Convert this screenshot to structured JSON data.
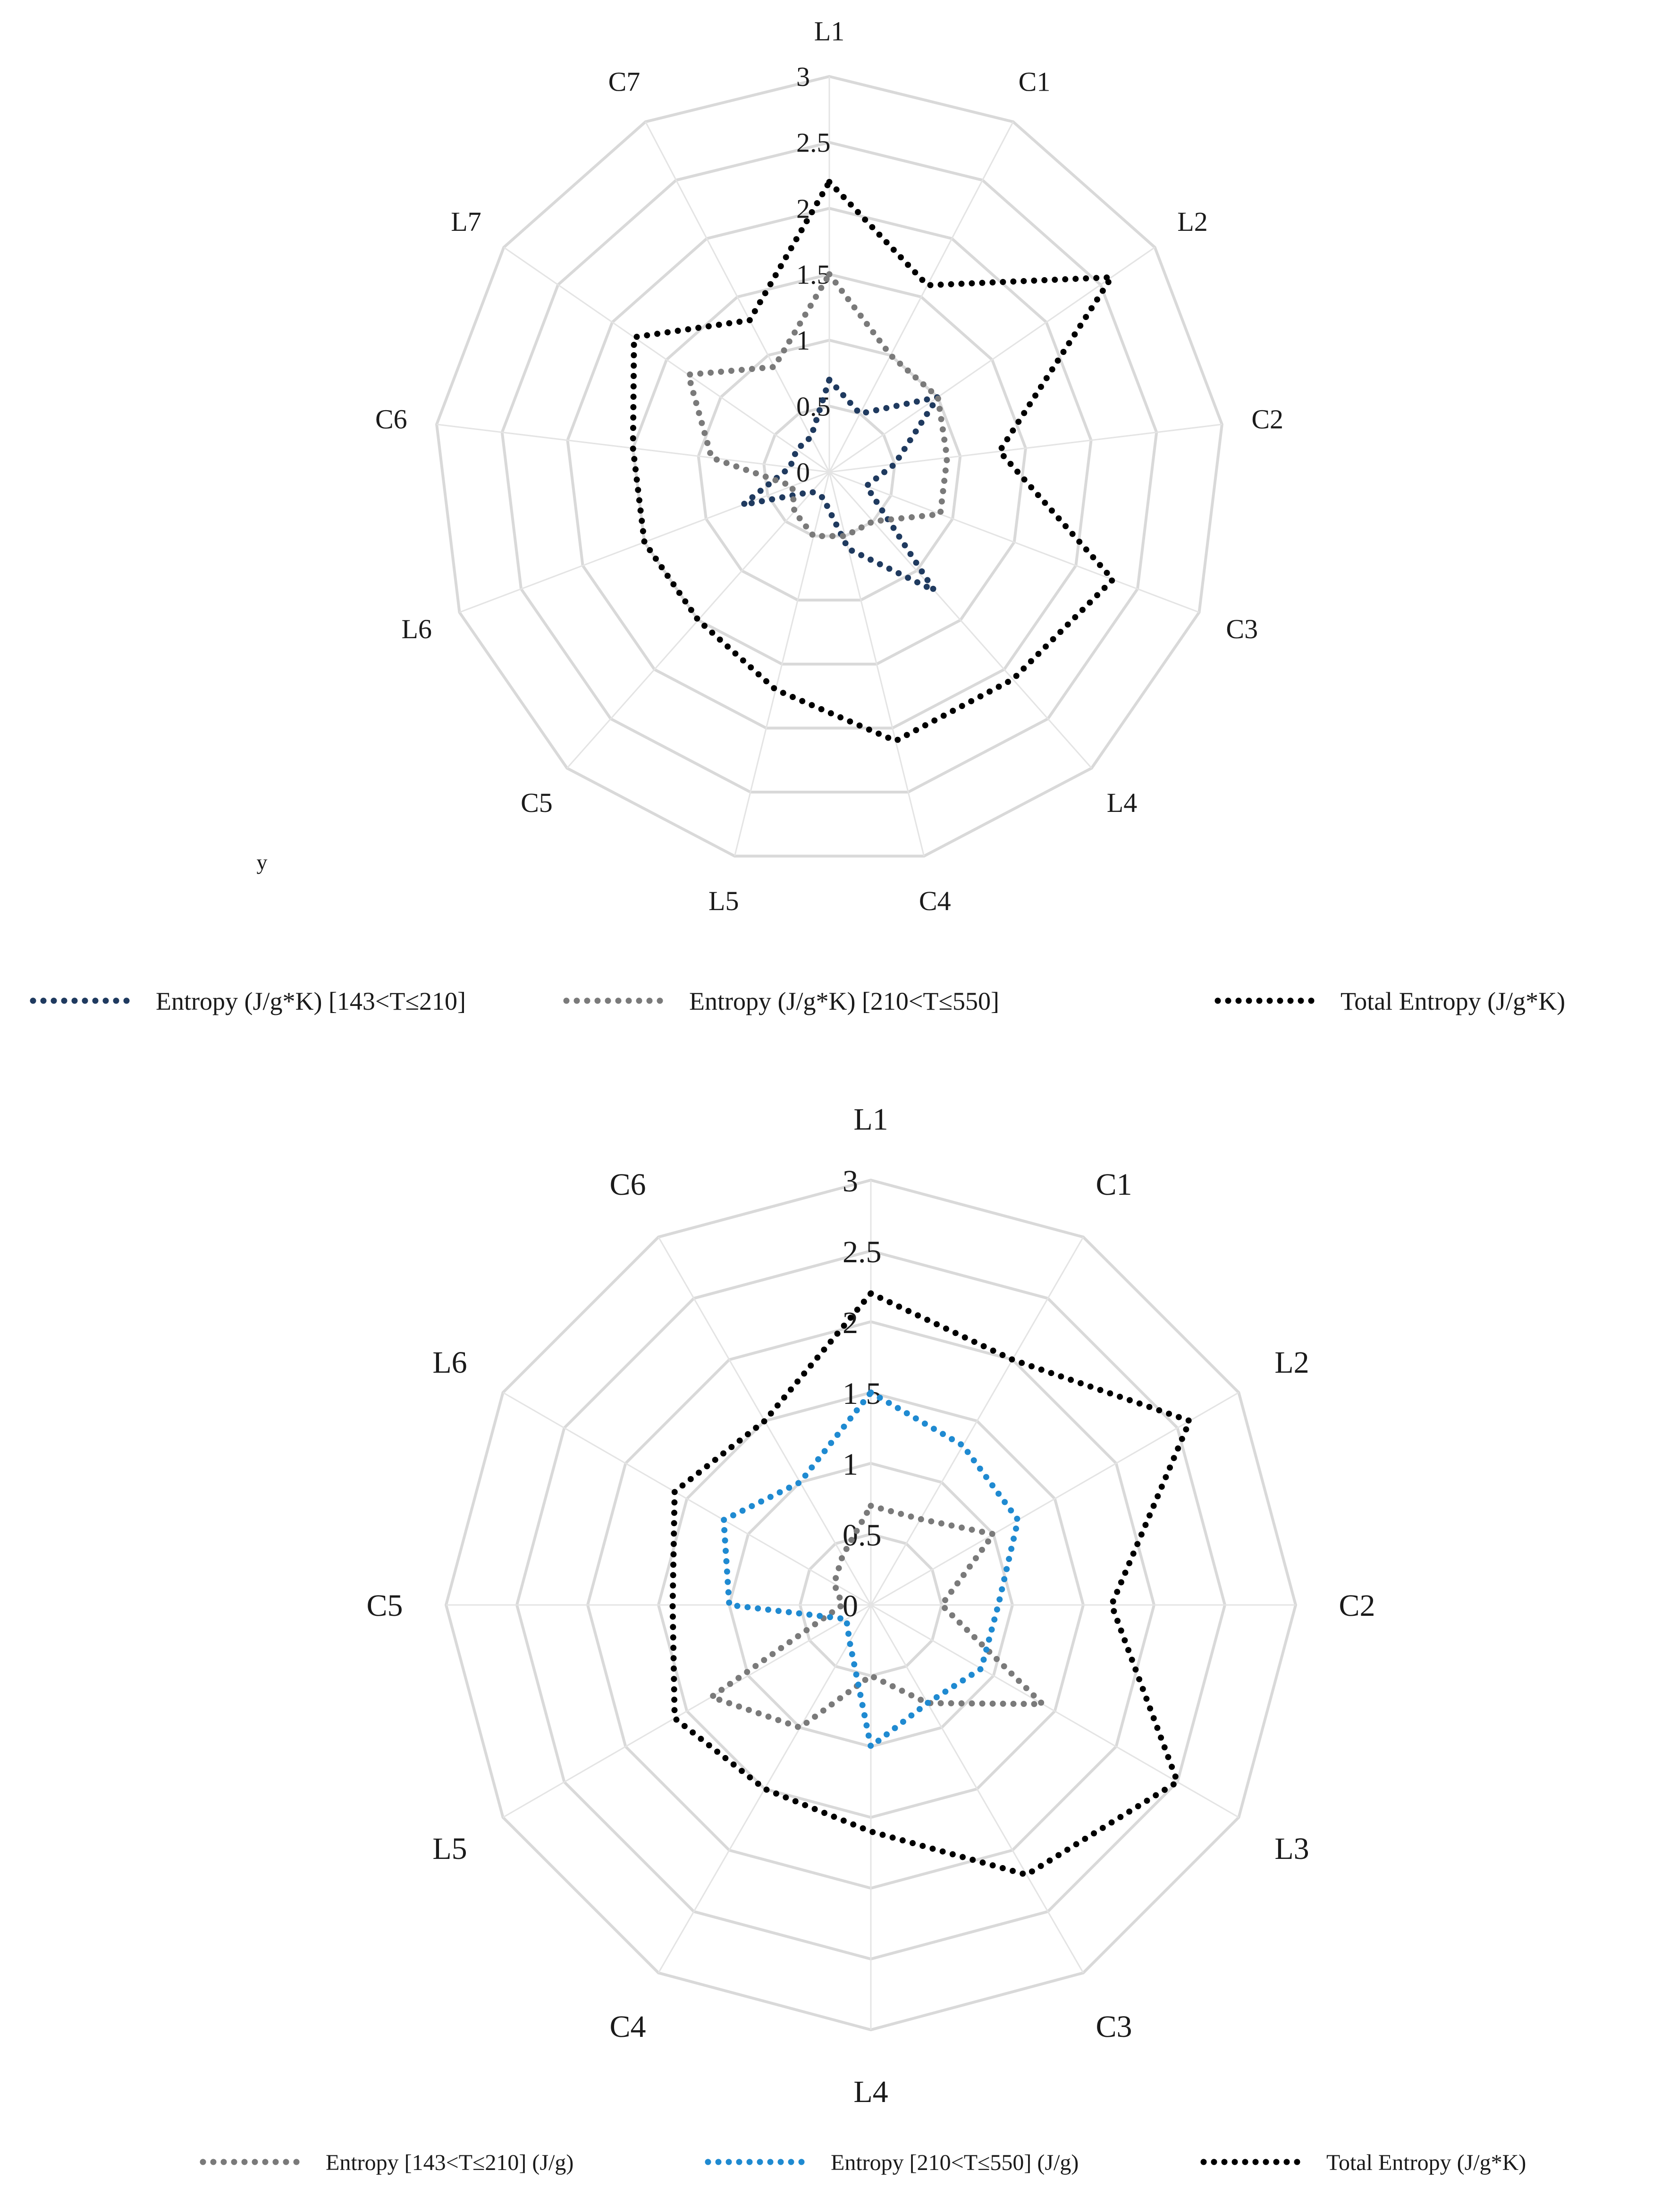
{
  "chart_data": [
    {
      "type": "radar",
      "categories": [
        "L1",
        "C1",
        "L2",
        "C2",
        "C3",
        "L4",
        "C4",
        "L5",
        "C5",
        "L6",
        "C6",
        "L7",
        "C7"
      ],
      "ticks": [
        "0",
        "0.5",
        "1",
        "1.5",
        "2",
        "2.5",
        "3"
      ],
      "rlim": [
        0,
        3
      ],
      "grid": true,
      "legend_position": "bottom",
      "stray_label": "y",
      "series": [
        {
          "name": "Entropy  (J/g*K) [143<T≤210]",
          "color": "#1f3a5f",
          "values": [
            0.7,
            0.5,
            1.0,
            0.5,
            0.3,
            1.2,
            0.6,
            0.2,
            0.2,
            0.7,
            0.3,
            0.3,
            0.3
          ]
        },
        {
          "name": "Entropy  (J/g*K) [210<T≤550]",
          "color": "#7a7a7a",
          "values": [
            1.5,
            1.0,
            1.0,
            0.9,
            0.9,
            0.5,
            0.5,
            0.5,
            0.4,
            0.3,
            0.9,
            1.3,
            0.9
          ]
        },
        {
          "name": "Total Entropy  (J/g*K)",
          "color": "#000000",
          "values": [
            2.2,
            1.6,
            2.6,
            1.3,
            2.3,
            2.1,
            2.1,
            1.7,
            1.5,
            1.5,
            1.5,
            1.8,
            1.3
          ]
        }
      ]
    },
    {
      "type": "radar",
      "categories": [
        "L1",
        "C1",
        "L2",
        "C2",
        "L3",
        "C3",
        "L4",
        "C4",
        "L5",
        "C5",
        "L6",
        "C6"
      ],
      "ticks": [
        "0",
        "0.5",
        "1",
        "1.5",
        "2",
        "2.5",
        "3"
      ],
      "rlim": [
        0,
        3
      ],
      "grid": true,
      "legend_position": "bottom",
      "series": [
        {
          "name": "Entropy [143<T≤210] (J/g)",
          "color": "#7a7a7a",
          "values": [
            0.7,
            0.7,
            1.0,
            0.5,
            1.4,
            0.8,
            0.5,
            1.0,
            1.3,
            0.2,
            0.3,
            0.4
          ]
        },
        {
          "name": "Entropy [210<T≤550] (J/g)",
          "color": "#1f8ad1",
          "values": [
            1.5,
            1.3,
            1.2,
            0.9,
            0.9,
            0.8,
            1.0,
            0.3,
            0.2,
            1.0,
            1.2,
            1.0
          ]
        },
        {
          "name": "Total Entropy (J/g*K)",
          "color": "#000000",
          "values": [
            2.2,
            2.0,
            2.6,
            1.7,
            2.5,
            2.2,
            1.6,
            1.5,
            1.6,
            1.4,
            1.6,
            1.5
          ]
        }
      ]
    }
  ]
}
